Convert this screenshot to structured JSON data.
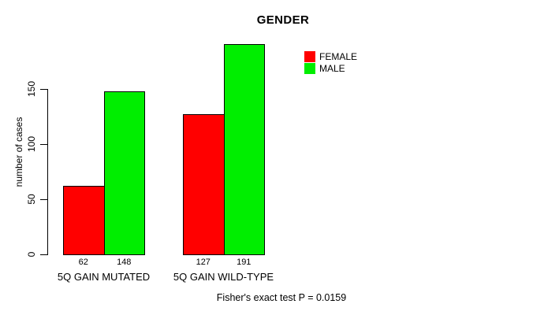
{
  "figure": {
    "title": "GENDER",
    "footer": "Fisher's exact test P = 0.0159"
  },
  "y_axis": {
    "label": "number of cases"
  },
  "legend": {
    "items": [
      {
        "label": "FEMALE",
        "color": "#ff0000"
      },
      {
        "label": "MALE",
        "color": "#00ee00"
      }
    ]
  },
  "chart_data": {
    "type": "bar",
    "title": "GENDER",
    "xlabel": "",
    "ylabel": "number of cases",
    "categories": [
      "5Q GAIN MUTATED",
      "5Q GAIN WILD-TYPE"
    ],
    "series": [
      {
        "name": "FEMALE",
        "color": "#ff0000",
        "values": [
          62,
          127
        ]
      },
      {
        "name": "MALE",
        "color": "#00ee00",
        "values": [
          148,
          191
        ]
      }
    ],
    "yticks": [
      0,
      50,
      100,
      150
    ],
    "ylim": [
      0,
      191
    ],
    "grid": false,
    "show_values_below_bars": true,
    "legend_position": "top-right",
    "annotation": "Fisher's exact test P = 0.0159"
  }
}
